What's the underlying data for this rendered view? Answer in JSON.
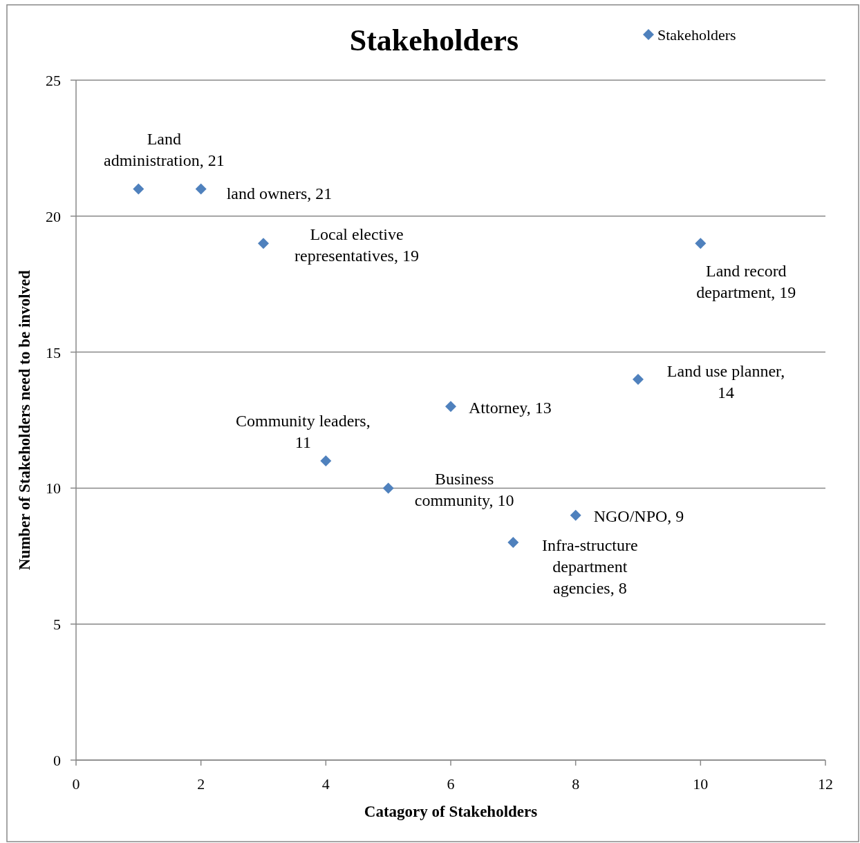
{
  "chart_data": {
    "type": "scatter",
    "title": "Stakeholders",
    "xlabel": "Catagory of Stakeholders",
    "ylabel": "Number of Stakeholders need to be involved",
    "xlim": [
      0,
      12
    ],
    "xticks": [
      0,
      2,
      4,
      6,
      8,
      10,
      12
    ],
    "ylim": [
      0,
      25
    ],
    "yticks": [
      0,
      5,
      10,
      15,
      20,
      25
    ],
    "grid": "y",
    "legend": "top right",
    "marker": "diamond",
    "series": [
      {
        "name": "Stakeholders",
        "color": "#4f81bd",
        "x": [
          1,
          2,
          3,
          4,
          5,
          6,
          7,
          8,
          9,
          10
        ],
        "values": [
          21,
          21,
          19,
          11,
          10,
          13,
          8,
          9,
          14,
          19
        ],
        "value_labels": [
          "Land administration, 21",
          "land owners, 21",
          "Local elective representatives, 19",
          "Community leaders, 11",
          "Business community, 10",
          "Attorney, 13",
          "Infra-structure department agencies, 8",
          "NGO/NPO, 9",
          "Land use planner, 14",
          "Land record department, 19"
        ]
      }
    ]
  }
}
